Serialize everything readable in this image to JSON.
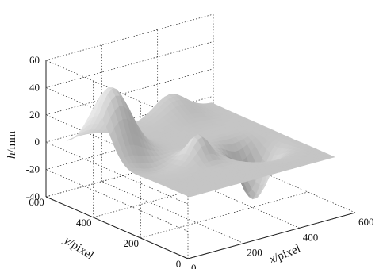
{
  "chart_data": {
    "type": "surface",
    "title": "",
    "xlabel_var": "x",
    "xlabel_unit": "/pixel",
    "ylabel_var": "y",
    "ylabel_unit": "/pixel",
    "zlabel_var": "h",
    "zlabel_unit": "/mm",
    "x_ticks": [
      "0",
      "200",
      "400",
      "600"
    ],
    "y_ticks": [
      "0",
      "200",
      "400",
      "600"
    ],
    "z_ticks": [
      "-40",
      "-20",
      "0",
      "20",
      "40",
      "60"
    ],
    "xlim": [
      0,
      600
    ],
    "ylim": [
      0,
      600
    ],
    "zlim": [
      -40,
      60
    ],
    "grid": true,
    "colormap": "gray",
    "features": [
      {
        "kind": "peak",
        "x": 90,
        "y": 430,
        "height": 48,
        "width": 55
      },
      {
        "kind": "peak",
        "x": 410,
        "y": 560,
        "height": 15,
        "width": 55
      },
      {
        "kind": "bump",
        "x": 250,
        "y": 250,
        "height": 18,
        "width": 30
      },
      {
        "kind": "dip",
        "x": 120,
        "y": 300,
        "height": -6,
        "width": 45
      },
      {
        "kind": "pit",
        "x": 430,
        "y": 230,
        "height": -38,
        "width": 40
      }
    ]
  }
}
